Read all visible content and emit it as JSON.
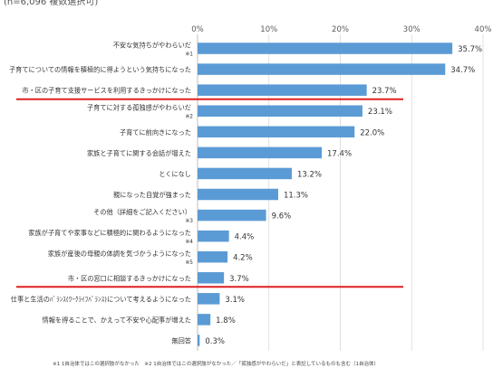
{
  "header_text": "(n=6,096 複数選択可)",
  "footnote": "※1 1自治体ではこの選択肢がなかった　※2 1自治体ではこの選択肢がなかった／「孤独感がやわらいだ」と表記しているものも含む（1自治体）",
  "chart_data": {
    "type": "bar",
    "orientation": "horizontal",
    "xlim": [
      0,
      40
    ],
    "ticks": [
      "0%",
      "10%",
      "20%",
      "30%",
      "40%"
    ],
    "tick_values": [
      0,
      10,
      20,
      30,
      40
    ],
    "grid": true,
    "bar_color": "#5b9bd5",
    "highlight_color": "#e02020",
    "categories": [
      "不安な気持ちがやわらいだ",
      "子育てについての情報を積極的に得ようという気持ちになった",
      "市・区の子育て支援サービスを利用するきっかけになった",
      "子育てに対する孤独感がやわらいだ",
      "子育てに前向きになった",
      "家族と子育てに関する会話が増えた",
      "とくになし",
      "親になった自覚が強まった",
      "その他（詳細をご記入ください）",
      "家族が子育てや家事などに積極的に関わるようになった",
      "家族が産後の母親の体調を気づかうようになった",
      "市・区の窓口に相談するきっかけになった",
      "仕事と生活のﾊﾞﾗﾝｽ(ﾜｰｸﾗｲﾌﾊﾞﾗﾝｽ)について考えるようになった",
      "情報を得ることで、かえって不安や心配事が増えた",
      "無回答"
    ],
    "notes": [
      "※1",
      "",
      "",
      "※2",
      "",
      "",
      "",
      "",
      "※3",
      "※4",
      "※5",
      "",
      "",
      "",
      ""
    ],
    "values": [
      35.7,
      34.7,
      23.7,
      23.1,
      22.0,
      17.4,
      13.2,
      11.3,
      9.6,
      4.4,
      4.2,
      3.7,
      3.1,
      1.8,
      0.3
    ],
    "value_labels": [
      "35.7%",
      "34.7%",
      "23.7%",
      "23.1%",
      "22.0%",
      "17.4%",
      "13.2%",
      "11.3%",
      "9.6%",
      "4.4%",
      "4.2%",
      "3.7%",
      "3.1%",
      "1.8%",
      "0.3%"
    ],
    "highlighted": [
      2,
      11
    ]
  }
}
